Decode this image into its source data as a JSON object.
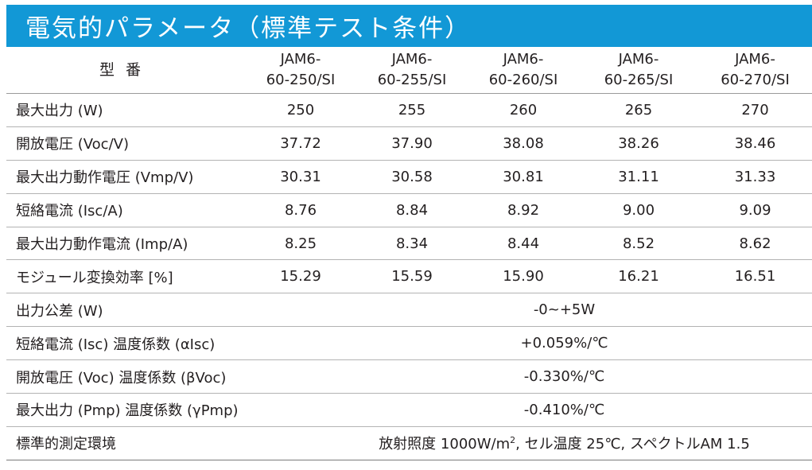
{
  "title": "電気的パラメータ（標準テスト条件）",
  "header": {
    "label": "型番",
    "models": [
      [
        "JAM6-",
        "60-250/SI"
      ],
      [
        "JAM6-",
        "60-255/SI"
      ],
      [
        "JAM6-",
        "60-260/SI"
      ],
      [
        "JAM6-",
        "60-265/SI"
      ],
      [
        "JAM6-",
        "60-270/SI"
      ]
    ]
  },
  "rows": [
    {
      "label": "最大出力 (W)",
      "values": [
        "250",
        "255",
        "260",
        "265",
        "270"
      ]
    },
    {
      "label": "開放電圧 (Voc/V)",
      "values": [
        "37.72",
        "37.90",
        "38.08",
        "38.26",
        "38.46"
      ]
    },
    {
      "label": "最大出力動作電圧 (Vmp/V)",
      "values": [
        "30.31",
        "30.58",
        "30.81",
        "31.11",
        "31.33"
      ]
    },
    {
      "label": "短絡電流 (Isc/A)",
      "values": [
        "8.76",
        "8.84",
        "8.92",
        "9.00",
        "9.09"
      ]
    },
    {
      "label": "最大出力動作電流 (Imp/A)",
      "values": [
        "8.25",
        "8.34",
        "8.44",
        "8.52",
        "8.62"
      ]
    },
    {
      "label": "モジュール変換効率 [%]",
      "values": [
        "15.29",
        "15.59",
        "15.90",
        "16.21",
        "16.51"
      ]
    }
  ],
  "span_rows": [
    {
      "label": "出力公差 (W)",
      "value": "-0~+5W"
    },
    {
      "label": "短絡電流 (Isc) 温度係数 (αIsc)",
      "value": "+0.059%/℃"
    },
    {
      "label": "開放電圧 (Voc) 温度係数 (βVoc)",
      "value": "-0.330%/℃"
    },
    {
      "label": "最大出力 (Pmp) 温度係数 (γPmp)",
      "value": "-0.410%/℃"
    }
  ],
  "conditions": {
    "label": "標準的測定環境",
    "value_pre": "放射照度 1000W/m",
    "value_sup": "2",
    "value_post": ", セル温度 25℃, スペクトルAM 1.5"
  },
  "colors": {
    "title_bar": "#1298d6",
    "title_text": "#ffffff"
  }
}
